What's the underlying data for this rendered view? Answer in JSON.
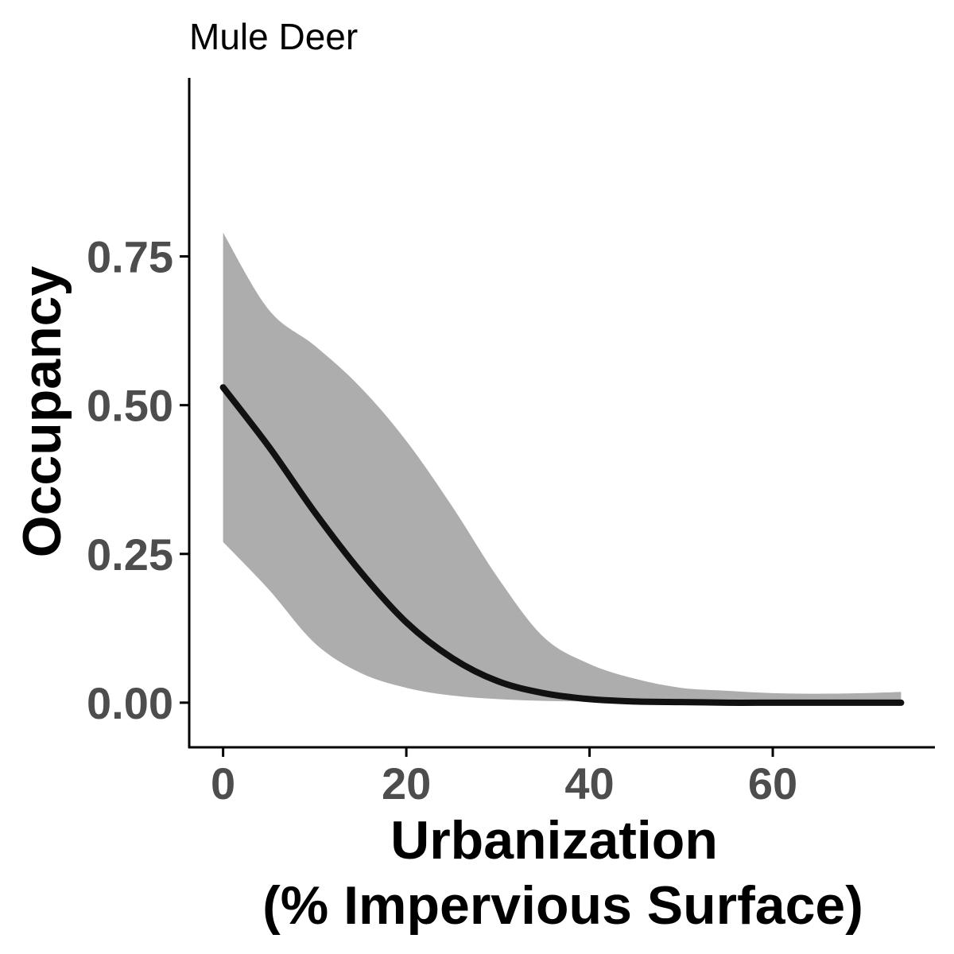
{
  "chart_data": {
    "type": "line",
    "title": "Mule Deer",
    "xlabel_lines": [
      "Urbanization",
      "(% Impervious Surface)"
    ],
    "ylabel": "Occupancy",
    "xlim": [
      -3.7,
      77.7
    ],
    "ylim": [
      -0.075,
      1.05
    ],
    "x_ticks": [
      0,
      20,
      40,
      60
    ],
    "x_tick_labels": [
      "0",
      "20",
      "40",
      "60"
    ],
    "y_ticks": [
      0,
      0.25,
      0.5,
      0.75
    ],
    "y_tick_labels": [
      "0.00",
      "0.25",
      "0.50",
      "0.75"
    ],
    "grid": false,
    "legend": "none",
    "colors": {
      "line": "#111111",
      "band": "#adadad",
      "axis": "#000000"
    },
    "series": [
      {
        "x": [
          0,
          5,
          10,
          15,
          20,
          25,
          30,
          35,
          40,
          45,
          50,
          55,
          60,
          65,
          70,
          74
        ],
        "y": [
          0.53,
          0.43,
          0.32,
          0.22,
          0.135,
          0.075,
          0.036,
          0.016,
          0.006,
          0.002,
          0.001,
          0.0,
          0.0,
          0.0,
          0.0,
          0.0
        ],
        "lower": [
          0.27,
          0.19,
          0.1,
          0.05,
          0.025,
          0.012,
          0.006,
          0.003,
          0.002,
          0.001,
          0.0,
          0.0,
          0.0,
          0.0,
          0.0,
          0.0
        ],
        "upper": [
          0.79,
          0.66,
          0.6,
          0.53,
          0.44,
          0.33,
          0.21,
          0.11,
          0.065,
          0.04,
          0.025,
          0.02,
          0.016,
          0.015,
          0.016,
          0.018
        ]
      }
    ]
  }
}
